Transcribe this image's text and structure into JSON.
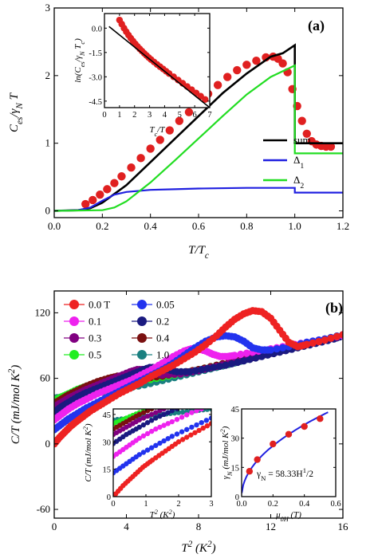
{
  "chart_data": [
    {
      "type": "line",
      "panel_label": "(a)",
      "xlabel_html": "T/T_c",
      "ylabel_html": "C_es/γ_N T",
      "xlim": [
        0.0,
        1.2
      ],
      "ylim": [
        -0.1,
        3.0
      ],
      "x_ticks": [
        "0.0",
        "0.2",
        "0.4",
        "0.6",
        "0.8",
        "1.0",
        "1.2"
      ],
      "y_ticks": [
        "0",
        "1",
        "2",
        "3"
      ],
      "legend": [
        "sum",
        "Δ1",
        "Δ2"
      ],
      "series": [
        {
          "name": "sum",
          "color": "#000000",
          "kind": "line",
          "x": [
            0,
            0.1,
            0.15,
            0.2,
            0.3,
            0.4,
            0.5,
            0.6,
            0.7,
            0.8,
            0.9,
            0.95,
            1.0,
            1.0,
            1.2
          ],
          "y": [
            0.0,
            0.01,
            0.04,
            0.12,
            0.38,
            0.72,
            1.06,
            1.4,
            1.74,
            2.03,
            2.28,
            2.33,
            2.45,
            1.0,
            1.0
          ]
        },
        {
          "name": "Δ1",
          "color": "#2020e0",
          "kind": "line",
          "x": [
            0,
            0.1,
            0.15,
            0.2,
            0.25,
            0.3,
            0.4,
            0.5,
            0.6,
            0.8,
            0.95,
            1.0,
            1.0,
            1.2
          ],
          "y": [
            0.0,
            0.01,
            0.05,
            0.15,
            0.24,
            0.28,
            0.31,
            0.32,
            0.33,
            0.34,
            0.34,
            0.34,
            0.27,
            0.27
          ]
        },
        {
          "name": "Δ2",
          "color": "#22dd22",
          "kind": "line",
          "x": [
            0,
            0.2,
            0.25,
            0.3,
            0.4,
            0.5,
            0.6,
            0.7,
            0.8,
            0.9,
            1.0,
            1.0,
            1.2
          ],
          "y": [
            0.0,
            0.01,
            0.05,
            0.14,
            0.42,
            0.74,
            1.07,
            1.4,
            1.72,
            1.98,
            2.15,
            0.85,
            0.85
          ]
        },
        {
          "name": "data",
          "color": "#e02020",
          "kind": "points",
          "x": [
            0.13,
            0.16,
            0.19,
            0.22,
            0.25,
            0.28,
            0.32,
            0.36,
            0.4,
            0.44,
            0.48,
            0.52,
            0.56,
            0.6,
            0.64,
            0.68,
            0.72,
            0.76,
            0.8,
            0.84,
            0.88,
            0.91,
            0.93,
            0.95,
            0.97,
            0.99,
            1.01,
            1.03,
            1.05,
            1.07,
            1.09,
            1.11,
            1.13,
            1.15
          ],
          "y": [
            0.1,
            0.16,
            0.24,
            0.32,
            0.41,
            0.51,
            0.64,
            0.78,
            0.92,
            1.05,
            1.19,
            1.33,
            1.46,
            1.6,
            1.73,
            1.86,
            1.98,
            2.08,
            2.16,
            2.22,
            2.27,
            2.28,
            2.25,
            2.18,
            2.05,
            1.8,
            1.55,
            1.33,
            1.14,
            1.03,
            0.98,
            0.96,
            0.95,
            0.95
          ]
        }
      ],
      "inset": {
        "ylabel_html": "ln(C_es/γ_N T_c)",
        "xlabel_html": "T_c/T",
        "xlim": [
          0,
          7
        ],
        "ylim": [
          -4.9,
          0.9
        ],
        "x_ticks": [
          "0",
          "1",
          "2",
          "3",
          "4",
          "5",
          "6",
          "7"
        ],
        "y_ticks": [
          "0.0",
          "-1.5",
          "-3.0",
          "-4.5"
        ],
        "fit": {
          "x": [
            0.3,
            7
          ],
          "y": [
            0.1,
            -4.9
          ]
        },
        "points": {
          "x": [
            1.0,
            1.15,
            1.3,
            1.45,
            1.6,
            1.75,
            1.9,
            2.05,
            2.2,
            2.35,
            2.5,
            2.65,
            2.8,
            2.95,
            3.1,
            3.3,
            3.5,
            3.7,
            3.9,
            4.1,
            4.3,
            4.6,
            4.9,
            5.2,
            5.5,
            5.8,
            6.1,
            6.4,
            6.7
          ],
          "y": [
            0.5,
            0.25,
            0.0,
            -0.22,
            -0.43,
            -0.62,
            -0.8,
            -0.97,
            -1.13,
            -1.28,
            -1.42,
            -1.56,
            -1.69,
            -1.82,
            -1.94,
            -2.09,
            -2.24,
            -2.38,
            -2.52,
            -2.66,
            -2.8,
            -3.0,
            -3.2,
            -3.4,
            -3.6,
            -3.8,
            -4.0,
            -4.2,
            -4.4
          ]
        }
      }
    },
    {
      "type": "scatter",
      "panel_label": "(b)",
      "xlabel_html": "T^2 (K^2)",
      "ylabel_html": "C/T (mJ/mol K^2)",
      "xlim": [
        0,
        16
      ],
      "ylim": [
        -68,
        140
      ],
      "x_ticks": [
        "0",
        "4",
        "8",
        "12",
        "16"
      ],
      "y_ticks": [
        "-60",
        "0",
        "60",
        "120"
      ],
      "legend_layout": "two-columns-top-left",
      "series": [
        {
          "name": "0.0 T",
          "color": "#ee2222",
          "x": [
            0,
            0.3,
            0.6,
            0.9,
            1.2,
            1.6,
            2.0,
            2.5,
            3.0,
            3.6,
            4.2,
            4.8,
            5.4,
            6,
            6.6,
            7.2,
            7.8,
            8.4,
            9,
            9.5,
            10,
            10.5,
            11,
            11.5,
            12,
            12.5,
            13,
            13.5,
            14,
            15,
            16
          ],
          "y": [
            0,
            6,
            11,
            16,
            20,
            25,
            30,
            35,
            40,
            46,
            51,
            56,
            62,
            67,
            72,
            78,
            84,
            91,
            99,
            107,
            114,
            119,
            122,
            121,
            115,
            104,
            93,
            89,
            91,
            95,
            100
          ]
        },
        {
          "name": "0.05",
          "color": "#2233ee",
          "x": [
            0,
            0.4,
            0.8,
            1.3,
            1.8,
            2.4,
            3,
            3.6,
            4.2,
            4.8,
            5.4,
            6,
            6.6,
            7.2,
            7.8,
            8.4,
            9,
            9.5,
            10,
            10.5,
            11,
            11.5,
            12,
            13,
            14,
            15,
            16
          ],
          "y": [
            13,
            18,
            23,
            28,
            33,
            38,
            43,
            48,
            53,
            58,
            63,
            68,
            74,
            81,
            88,
            94,
            98,
            99,
            98,
            94,
            88,
            86,
            86,
            89,
            93,
            96,
            100
          ]
        },
        {
          "name": "0.1",
          "color": "#ee22ee",
          "x": [
            0,
            0.4,
            0.8,
            1.3,
            1.8,
            2.4,
            3,
            3.6,
            4.2,
            4.8,
            5.4,
            6,
            6.6,
            7.2,
            7.6,
            8,
            8.4,
            8.8,
            9.2,
            9.6,
            10,
            11,
            12,
            13,
            14,
            15,
            16
          ],
          "y": [
            22,
            27,
            32,
            37,
            41,
            46,
            50,
            54,
            58,
            63,
            68,
            74,
            80,
            85,
            87,
            87,
            85,
            82,
            80,
            80,
            81,
            84,
            87,
            90,
            93,
            96,
            99
          ]
        },
        {
          "name": "0.2",
          "color": "#1a1a80",
          "x": [
            0,
            0.4,
            0.8,
            1.3,
            1.8,
            2.4,
            3,
            3.6,
            4.2,
            4.8,
            5.3,
            5.8,
            6.3,
            6.8,
            7.5,
            8.5,
            9.5,
            10.5,
            11.5,
            12.5,
            13.5,
            14.5,
            15.5,
            16
          ],
          "y": [
            29,
            34,
            38,
            43,
            47,
            51,
            55,
            59,
            63,
            67,
            70,
            70,
            68,
            66,
            66,
            69,
            72,
            76,
            80,
            84,
            88,
            92,
            96,
            99
          ]
        },
        {
          "name": "0.3",
          "color": "#800080",
          "x": [
            0,
            0.4,
            0.8,
            1.3,
            1.8,
            2.4,
            3,
            3.6,
            4.2,
            4.6,
            5,
            5.4,
            6,
            7,
            8,
            9,
            10,
            11,
            12,
            13,
            14,
            15,
            16
          ],
          "y": [
            34,
            38,
            42,
            46,
            50,
            54,
            58,
            62,
            66,
            68,
            68,
            66,
            63,
            64,
            67,
            71,
            75,
            79,
            83,
            87,
            91,
            95,
            99
          ]
        },
        {
          "name": "0.4",
          "color": "#7a1010",
          "x": [
            0,
            0.4,
            0.8,
            1.3,
            1.8,
            2.4,
            3,
            3.5,
            4,
            4.5,
            5,
            6,
            7,
            8,
            9,
            10,
            11,
            12,
            13,
            14,
            15,
            16
          ],
          "y": [
            37,
            41,
            45,
            49,
            53,
            57,
            60,
            62,
            62,
            60,
            60,
            62,
            65,
            68,
            72,
            76,
            80,
            84,
            88,
            92,
            96,
            99
          ]
        },
        {
          "name": "0.5",
          "color": "#22ee22",
          "x": [
            0,
            0.4,
            0.8,
            1.3,
            1.8,
            2.4,
            3,
            3.5,
            4,
            5,
            6,
            7,
            8,
            9,
            10,
            11,
            12,
            13,
            14,
            15,
            16
          ],
          "y": [
            40,
            43,
            46,
            50,
            53,
            56,
            57,
            57,
            56,
            58,
            61,
            64,
            68,
            72,
            76,
            80,
            84,
            88,
            92,
            96,
            99
          ]
        },
        {
          "name": "1.0",
          "color": "#1a8080",
          "x": [
            0,
            0.5,
            1,
            1.5,
            2,
            2.5,
            3,
            3.5,
            4,
            5,
            6,
            7,
            8,
            9,
            10,
            11,
            12,
            13,
            14,
            15,
            16
          ],
          "y": [
            42,
            43,
            44,
            45,
            46,
            47,
            48,
            50,
            51,
            54,
            58,
            62,
            66,
            70,
            74,
            79,
            83,
            87,
            91,
            96,
            100
          ]
        }
      ],
      "inset_left": {
        "xlabel_html": "T^2 (K^2)",
        "ylabel_html": "C/T (mJ/mol K^2)",
        "xlim": [
          0,
          3
        ],
        "ylim": [
          0,
          48
        ],
        "x_ticks": [
          "0",
          "1",
          "2",
          "3"
        ],
        "y_ticks": [
          "0",
          "15",
          "30",
          "45"
        ]
      },
      "inset_right": {
        "xlabel_html": "μ_0H (T)",
        "ylabel_html": "γ_N (mJ/mol K^2)",
        "xlim": [
          0,
          0.6
        ],
        "ylim": [
          0,
          45
        ],
        "x_ticks": [
          "0.0",
          "0.2",
          "0.4",
          "0.6"
        ],
        "y_ticks": [
          "0",
          "15",
          "30",
          "45"
        ],
        "fit_label_html": "γ_N = 58.33H^1/2",
        "points": {
          "x": [
            0.05,
            0.1,
            0.2,
            0.3,
            0.4,
            0.5
          ],
          "y": [
            13,
            19,
            27,
            32,
            36,
            40
          ]
        }
      }
    }
  ]
}
